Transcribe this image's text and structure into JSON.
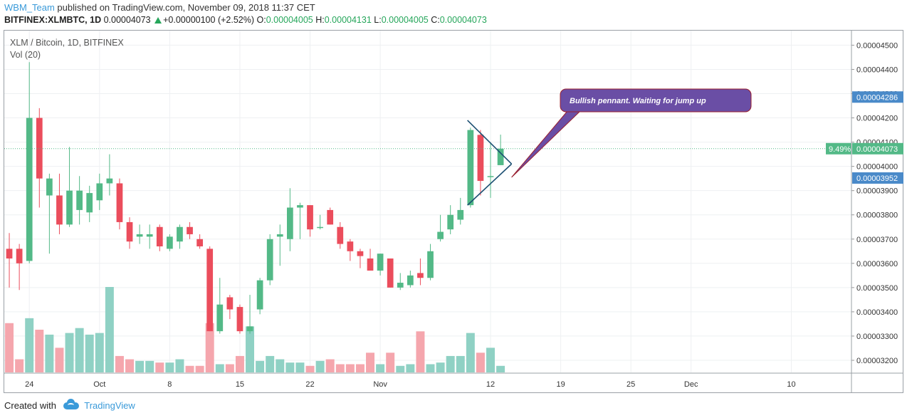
{
  "header": {
    "user": "WBM_Team",
    "published_text": "published on TradingView.com, November 09, 2018 11:37 CET",
    "ticker": "BITFINEX:XLMBTC, 1D",
    "last": "0.00004073",
    "change": "+0.00000100 (+2.52%)",
    "o_label": "O:",
    "o_value": "0.00004005",
    "h_label": "H:",
    "h_value": "0.00004131",
    "l_label": "L:",
    "l_value": "0.00004005",
    "c_label": "C:",
    "c_value": "0.00004073"
  },
  "legend": {
    "symbol": "XLM / Bitcoin, 1D, BITFINEX",
    "volume": "Vol (20)"
  },
  "footer": {
    "created_with": "Created with",
    "brand": "TradingView"
  },
  "colors": {
    "up": "#53b987",
    "down": "#eb4d5c",
    "vol_up": "#8fd1c4",
    "vol_down": "#f5a6ad",
    "callout_bg": "#6a4ea5",
    "callout_border": "#9b1f2e",
    "pennant": "#1b4f72",
    "last_price": "#53b987",
    "label_blue": "#4a8ac9"
  },
  "annotation": {
    "text": "Bullish pennant. Waiting for jump up"
  },
  "chart_data": {
    "type": "candlestick",
    "title": "XLM / Bitcoin, 1D, BITFINEX",
    "x_ticks": [
      "24",
      "Oct",
      "8",
      "15",
      "22",
      "Nov",
      "12",
      "19",
      "25",
      "Dec",
      "10"
    ],
    "x_tick_days": [
      2,
      9,
      16,
      23,
      30,
      37,
      48,
      55,
      62,
      68,
      78
    ],
    "y_ticks": [
      "0.00003200",
      "0.00003300",
      "0.00003400",
      "0.00003500",
      "0.00003600",
      "0.00003700",
      "0.00003800",
      "0.00003900",
      "0.00004000",
      "0.00004100",
      "0.00004200",
      "0.00004300",
      "0.00004400",
      "0.00004500"
    ],
    "price_labels": {
      "high_marker": "0.00004286",
      "last": "0.00004073",
      "last_pct": "9.49%",
      "low_marker": "0.00003952"
    },
    "ylim": [
      3.15e-05,
      4.56e-05
    ],
    "xlim": [
      -0.5,
      84
    ],
    "candles": [
      {
        "d": 0,
        "o": 3660,
        "h": 3725,
        "l": 3500,
        "c": 3620,
        "v": 30
      },
      {
        "d": 1,
        "o": 3660,
        "h": 3680,
        "l": 3490,
        "c": 3600,
        "v": 8
      },
      {
        "d": 2,
        "o": 3610,
        "h": 4430,
        "l": 3600,
        "c": 4200,
        "v": 33
      },
      {
        "d": 3,
        "o": 4200,
        "h": 4240,
        "l": 3830,
        "c": 3950,
        "v": 26
      },
      {
        "d": 4,
        "o": 3880,
        "h": 3970,
        "l": 3640,
        "c": 3950,
        "v": 23
      },
      {
        "d": 5,
        "o": 3880,
        "h": 3970,
        "l": 3720,
        "c": 3760,
        "v": 15
      },
      {
        "d": 6,
        "o": 3760,
        "h": 4080,
        "l": 3750,
        "c": 3900,
        "v": 24
      },
      {
        "d": 7,
        "o": 3820,
        "h": 3960,
        "l": 3760,
        "c": 3900,
        "v": 27
      },
      {
        "d": 8,
        "o": 3810,
        "h": 3920,
        "l": 3770,
        "c": 3890,
        "v": 23
      },
      {
        "d": 9,
        "o": 3860,
        "h": 3970,
        "l": 3820,
        "c": 3930,
        "v": 24
      },
      {
        "d": 10,
        "o": 3930,
        "h": 4050,
        "l": 3880,
        "c": 3950,
        "v": 52
      },
      {
        "d": 11,
        "o": 3930,
        "h": 3950,
        "l": 3740,
        "c": 3770,
        "v": 10
      },
      {
        "d": 12,
        "o": 3770,
        "h": 3790,
        "l": 3660,
        "c": 3690,
        "v": 8
      },
      {
        "d": 13,
        "o": 3710,
        "h": 3760,
        "l": 3680,
        "c": 3720,
        "v": 7
      },
      {
        "d": 14,
        "o": 3710,
        "h": 3760,
        "l": 3660,
        "c": 3720,
        "v": 7
      },
      {
        "d": 15,
        "o": 3750,
        "h": 3760,
        "l": 3650,
        "c": 3670,
        "v": 6
      },
      {
        "d": 16,
        "o": 3660,
        "h": 3720,
        "l": 3650,
        "c": 3710,
        "v": 6
      },
      {
        "d": 17,
        "o": 3690,
        "h": 3760,
        "l": 3660,
        "c": 3750,
        "v": 8
      },
      {
        "d": 18,
        "o": 3750,
        "h": 3770,
        "l": 3700,
        "c": 3720,
        "v": 4
      },
      {
        "d": 19,
        "o": 3700,
        "h": 3720,
        "l": 3660,
        "c": 3670,
        "v": 4
      },
      {
        "d": 20,
        "o": 3660,
        "h": 3670,
        "l": 3320,
        "c": 3320,
        "v": 30
      },
      {
        "d": 21,
        "o": 3320,
        "h": 3540,
        "l": 3310,
        "c": 3430,
        "v": 5
      },
      {
        "d": 22,
        "o": 3460,
        "h": 3470,
        "l": 3370,
        "c": 3410,
        "v": 5
      },
      {
        "d": 23,
        "o": 3420,
        "h": 3430,
        "l": 3310,
        "c": 3320,
        "v": 10
      },
      {
        "d": 24,
        "o": 3320,
        "h": 3470,
        "l": 3310,
        "c": 3340,
        "v": 28
      },
      {
        "d": 25,
        "o": 3410,
        "h": 3540,
        "l": 3390,
        "c": 3530,
        "v": 7
      },
      {
        "d": 26,
        "o": 3530,
        "h": 3720,
        "l": 3510,
        "c": 3700,
        "v": 10
      },
      {
        "d": 27,
        "o": 3710,
        "h": 3760,
        "l": 3590,
        "c": 3720,
        "v": 8
      },
      {
        "d": 28,
        "o": 3700,
        "h": 3910,
        "l": 3650,
        "c": 3830,
        "v": 6
      },
      {
        "d": 29,
        "o": 3830,
        "h": 3850,
        "l": 3700,
        "c": 3840,
        "v": 6
      },
      {
        "d": 30,
        "o": 3840,
        "h": 3840,
        "l": 3710,
        "c": 3740,
        "v": 4
      },
      {
        "d": 31,
        "o": 3750,
        "h": 3800,
        "l": 3740,
        "c": 3750,
        "v": 7
      },
      {
        "d": 32,
        "o": 3820,
        "h": 3830,
        "l": 3760,
        "c": 3760,
        "v": 8
      },
      {
        "d": 33,
        "o": 3750,
        "h": 3770,
        "l": 3660,
        "c": 3680,
        "v": 5
      },
      {
        "d": 34,
        "o": 3690,
        "h": 3700,
        "l": 3610,
        "c": 3650,
        "v": 5
      },
      {
        "d": 35,
        "o": 3650,
        "h": 3660,
        "l": 3580,
        "c": 3630,
        "v": 5
      },
      {
        "d": 36,
        "o": 3620,
        "h": 3660,
        "l": 3570,
        "c": 3570,
        "v": 12
      },
      {
        "d": 37,
        "o": 3570,
        "h": 3640,
        "l": 3550,
        "c": 3640,
        "v": 5
      },
      {
        "d": 38,
        "o": 3620,
        "h": 3620,
        "l": 3500,
        "c": 3500,
        "v": 12
      },
      {
        "d": 39,
        "o": 3500,
        "h": 3560,
        "l": 3490,
        "c": 3520,
        "v": 4
      },
      {
        "d": 40,
        "o": 3510,
        "h": 3570,
        "l": 3500,
        "c": 3550,
        "v": 5
      },
      {
        "d": 41,
        "o": 3560,
        "h": 3620,
        "l": 3510,
        "c": 3540,
        "v": 25
      },
      {
        "d": 42,
        "o": 3540,
        "h": 3680,
        "l": 3530,
        "c": 3650,
        "v": 5
      },
      {
        "d": 43,
        "o": 3700,
        "h": 3800,
        "l": 3690,
        "c": 3730,
        "v": 6
      },
      {
        "d": 44,
        "o": 3740,
        "h": 3840,
        "l": 3720,
        "c": 3800,
        "v": 10
      },
      {
        "d": 45,
        "o": 3780,
        "h": 3870,
        "l": 3760,
        "c": 3820,
        "v": 10
      },
      {
        "d": 46,
        "o": 3840,
        "h": 4160,
        "l": 3830,
        "c": 4150,
        "v": 24
      },
      {
        "d": 47,
        "o": 4130,
        "h": 4150,
        "l": 3880,
        "c": 3940,
        "v": 12
      },
      {
        "d": 48,
        "o": 3960,
        "h": 4100,
        "l": 3870,
        "c": 3960,
        "v": 15
      },
      {
        "d": 49,
        "o": 4005,
        "h": 4131,
        "l": 4005,
        "c": 4073,
        "v": 4
      }
    ],
    "price_scale": "1e-8 BTC",
    "volume_scale_max": 52
  }
}
